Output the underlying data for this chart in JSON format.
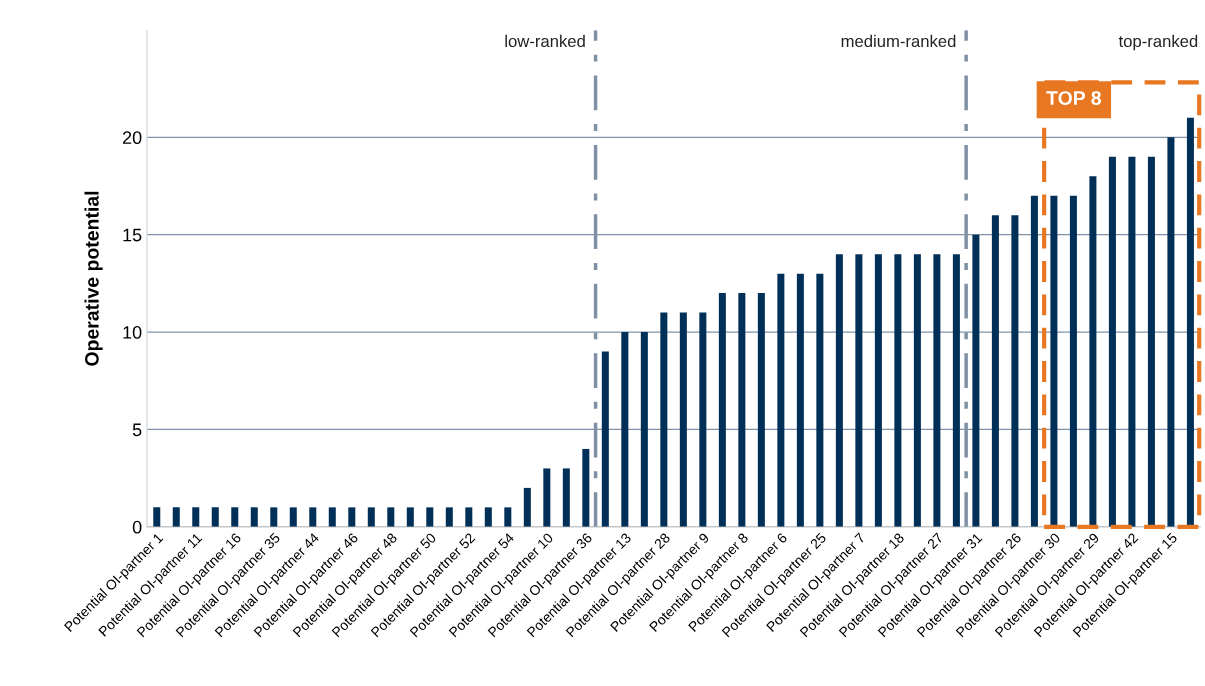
{
  "chart_data": {
    "type": "bar",
    "ylabel": "Operative potential",
    "categories": [
      "Potential OI-partner 1",
      null,
      "Potential OI-partner 11",
      null,
      "Potential OI-partner 16",
      null,
      "Potential OI-partner 35",
      null,
      "Potential OI-partner 44",
      null,
      "Potential OI-partner 46",
      null,
      "Potential OI-partner 48",
      null,
      "Potential OI-partner 50",
      null,
      "Potential OI-partner 52",
      null,
      "Potential OI-partner 54",
      null,
      "Potential OI-partner 10",
      null,
      "Potential OI-partner 36",
      null,
      "Potential OI-partner 13",
      null,
      "Potential OI-partner 28",
      null,
      "Potential OI-partner 9",
      null,
      "Potential OI-partner 8",
      null,
      "Potential OI-partner 6",
      null,
      "Potential OI-partner 25",
      null,
      "Potential OI-partner 7",
      null,
      "Potential OI-partner 18",
      null,
      "Potential OI-partner 27",
      null,
      "Potential OI-partner 31",
      null,
      "Potential OI-partner 26",
      null,
      "Potential OI-partner 30",
      null,
      "Potential OI-partner 29",
      null,
      "Potential OI-partner 42",
      null,
      "Potential OI-partner 15",
      null
    ],
    "values": [
      1,
      1,
      1,
      1,
      1,
      1,
      1,
      1,
      1,
      1,
      1,
      1,
      1,
      1,
      1,
      1,
      1,
      1,
      1,
      2,
      3,
      3,
      4,
      9,
      10,
      10,
      11,
      11,
      11,
      12,
      12,
      12,
      13,
      13,
      13,
      14,
      14,
      14,
      14,
      14,
      14,
      14,
      15,
      16,
      16,
      17,
      17,
      17,
      18,
      19,
      19,
      19,
      20,
      21
    ],
    "color": "#003057",
    "ylim": [
      0,
      25.5
    ],
    "yticks": [
      0,
      5,
      10,
      15,
      20
    ],
    "grid": "y",
    "annotations": [
      "low-ranked",
      "medium-ranked",
      "top-ranked",
      "TOP 8"
    ]
  }
}
